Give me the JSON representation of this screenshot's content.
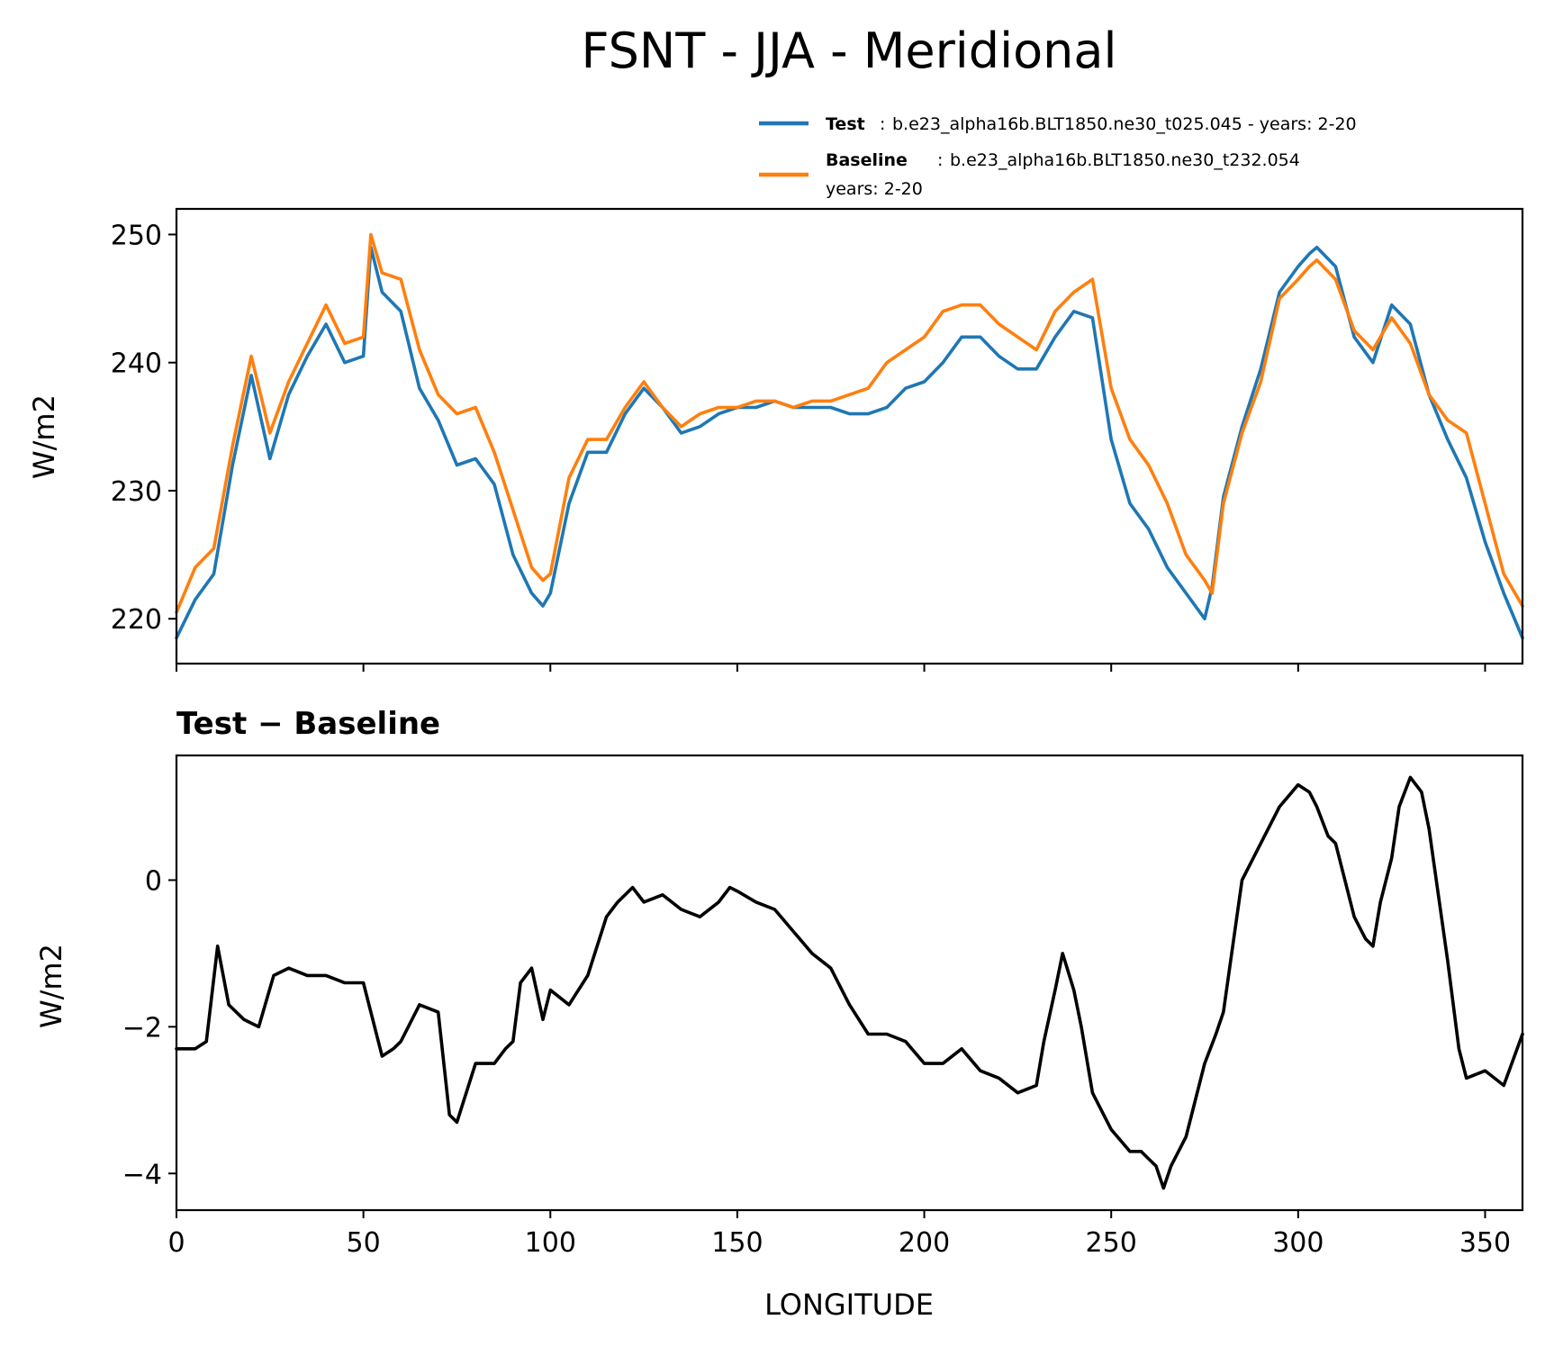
{
  "chart_data": [
    {
      "type": "line",
      "title": "FSNT - JJA - Meridional",
      "xlabel": "",
      "ylabel": "W/m2",
      "xlim": [
        0,
        360
      ],
      "ylim": [
        216.5,
        252
      ],
      "yticks": [
        220,
        230,
        240,
        250
      ],
      "xticks": [
        0,
        50,
        100,
        150,
        200,
        250,
        300,
        350
      ],
      "legend": {
        "position": "top-right, above axes",
        "entries": [
          {
            "name": "Test",
            "text": "b.e23_alpha16b.BLT1850.ne30_t025.045 - years: 2-20",
            "color": "#1f77b4"
          },
          {
            "name": "Baseline",
            "text": "b.e23_alpha16b.BLT1850.ne30_t232.054",
            "text2": "years: 2-20",
            "color": "#ff7f0e"
          }
        ]
      },
      "series": [
        {
          "name": "Test",
          "color": "#1f77b4",
          "x": [
            0,
            5,
            10,
            15,
            20,
            25,
            30,
            35,
            40,
            45,
            50,
            52,
            55,
            60,
            65,
            70,
            75,
            80,
            85,
            90,
            95,
            98,
            100,
            105,
            110,
            115,
            120,
            125,
            130,
            135,
            140,
            145,
            150,
            155,
            160,
            165,
            170,
            175,
            180,
            185,
            190,
            195,
            200,
            205,
            210,
            215,
            220,
            225,
            230,
            235,
            240,
            245,
            250,
            255,
            260,
            265,
            270,
            275,
            277,
            280,
            285,
            290,
            295,
            300,
            303,
            305,
            310,
            315,
            320,
            325,
            330,
            335,
            340,
            345,
            350,
            355,
            360
          ],
          "values": [
            218.5,
            221.5,
            223.5,
            232,
            239,
            232.5,
            237.5,
            240.5,
            243,
            240,
            240.5,
            249,
            245.5,
            244,
            238,
            235.5,
            232,
            232.5,
            230.5,
            225,
            222,
            221,
            222,
            229,
            233,
            233,
            236,
            238,
            236.5,
            234.5,
            235,
            236,
            236.5,
            236.5,
            237,
            236.5,
            236.5,
            236.5,
            236,
            236,
            236.5,
            238,
            238.5,
            240,
            242,
            242,
            240.5,
            239.5,
            239.5,
            242,
            244,
            243.5,
            234,
            229,
            227,
            224,
            222,
            220,
            222.5,
            229.5,
            235,
            239.5,
            245.5,
            247.5,
            248.5,
            249,
            247.5,
            242,
            240,
            244.5,
            243,
            237.5,
            234,
            231,
            226,
            222,
            218.5
          ]
        },
        {
          "name": "Baseline",
          "color": "#ff7f0e",
          "x": [
            0,
            5,
            10,
            15,
            20,
            25,
            30,
            35,
            40,
            45,
            50,
            52,
            55,
            60,
            65,
            70,
            75,
            80,
            85,
            90,
            95,
            98,
            100,
            105,
            110,
            115,
            120,
            125,
            130,
            135,
            140,
            145,
            150,
            155,
            160,
            165,
            170,
            175,
            180,
            185,
            190,
            195,
            200,
            205,
            210,
            215,
            220,
            225,
            230,
            235,
            240,
            245,
            250,
            255,
            260,
            265,
            270,
            275,
            277,
            280,
            285,
            290,
            295,
            300,
            303,
            305,
            310,
            315,
            320,
            325,
            330,
            335,
            340,
            345,
            350,
            355,
            360
          ],
          "values": [
            220.5,
            224,
            225.5,
            233.5,
            240.5,
            234.5,
            238.5,
            241.5,
            244.5,
            241.5,
            242,
            250,
            247,
            246.5,
            241,
            237.5,
            236,
            236.5,
            233,
            228.5,
            224,
            223,
            223.5,
            231,
            234,
            234,
            236.5,
            238.5,
            236.5,
            235,
            236,
            236.5,
            236.5,
            237,
            237,
            236.5,
            237,
            237,
            237.5,
            238,
            240,
            241,
            242,
            244,
            244.5,
            244.5,
            243,
            242,
            241,
            244,
            245.5,
            246.5,
            238,
            234,
            232,
            229,
            225,
            223,
            222,
            229,
            234.5,
            238.5,
            245,
            246.5,
            247.5,
            248,
            246.5,
            242.5,
            241,
            243.5,
            241.5,
            237.5,
            235.5,
            234.5,
            229,
            223.5,
            221
          ]
        }
      ]
    },
    {
      "type": "line",
      "title": "Test − Baseline",
      "xlabel": "LONGITUDE",
      "ylabel": "W/m2",
      "xlim": [
        0,
        360
      ],
      "ylim": [
        -4.5,
        1.7
      ],
      "yticks": [
        -4,
        -2,
        0
      ],
      "xticks": [
        0,
        50,
        100,
        150,
        200,
        250,
        300,
        350
      ],
      "series": [
        {
          "name": "Test − Baseline",
          "color": "#000000",
          "x": [
            0,
            5,
            8,
            11,
            14,
            18,
            22,
            26,
            30,
            35,
            40,
            45,
            50,
            55,
            58,
            60,
            65,
            70,
            73,
            75,
            80,
            85,
            88,
            90,
            92,
            95,
            98,
            100,
            105,
            110,
            115,
            118,
            120,
            122,
            125,
            130,
            135,
            140,
            145,
            148,
            150,
            155,
            160,
            165,
            170,
            175,
            180,
            185,
            190,
            195,
            200,
            205,
            210,
            215,
            220,
            225,
            230,
            232,
            235,
            237,
            240,
            242,
            245,
            250,
            255,
            258,
            260,
            262,
            264,
            266,
            270,
            275,
            278,
            280,
            285,
            290,
            295,
            300,
            303,
            305,
            308,
            310,
            315,
            318,
            320,
            322,
            325,
            327,
            330,
            333,
            335,
            340,
            343,
            345,
            350,
            355,
            360
          ],
          "values": [
            -2.3,
            -2.3,
            -2.2,
            -0.9,
            -1.7,
            -1.9,
            -2.0,
            -1.3,
            -1.2,
            -1.3,
            -1.3,
            -1.4,
            -1.4,
            -2.4,
            -2.3,
            -2.2,
            -1.7,
            -1.8,
            -3.2,
            -3.3,
            -2.5,
            -2.5,
            -2.3,
            -2.2,
            -1.4,
            -1.2,
            -1.9,
            -1.5,
            -1.7,
            -1.3,
            -0.5,
            -0.3,
            -0.2,
            -0.1,
            -0.3,
            -0.2,
            -0.4,
            -0.5,
            -0.3,
            -0.1,
            -0.15,
            -0.3,
            -0.4,
            -0.7,
            -1.0,
            -1.2,
            -1.7,
            -2.1,
            -2.1,
            -2.2,
            -2.5,
            -2.5,
            -2.3,
            -2.6,
            -2.7,
            -2.9,
            -2.8,
            -2.2,
            -1.5,
            -1.0,
            -1.5,
            -2.0,
            -2.9,
            -3.4,
            -3.7,
            -3.7,
            -3.8,
            -3.9,
            -4.2,
            -3.9,
            -3.5,
            -2.5,
            -2.1,
            -1.8,
            0.0,
            0.5,
            1.0,
            1.3,
            1.2,
            1.0,
            0.6,
            0.5,
            -0.5,
            -0.8,
            -0.9,
            -0.3,
            0.3,
            1.0,
            1.4,
            1.2,
            0.7,
            -1.1,
            -2.3,
            -2.7,
            -2.6,
            -2.8,
            -2.1
          ]
        }
      ]
    }
  ]
}
